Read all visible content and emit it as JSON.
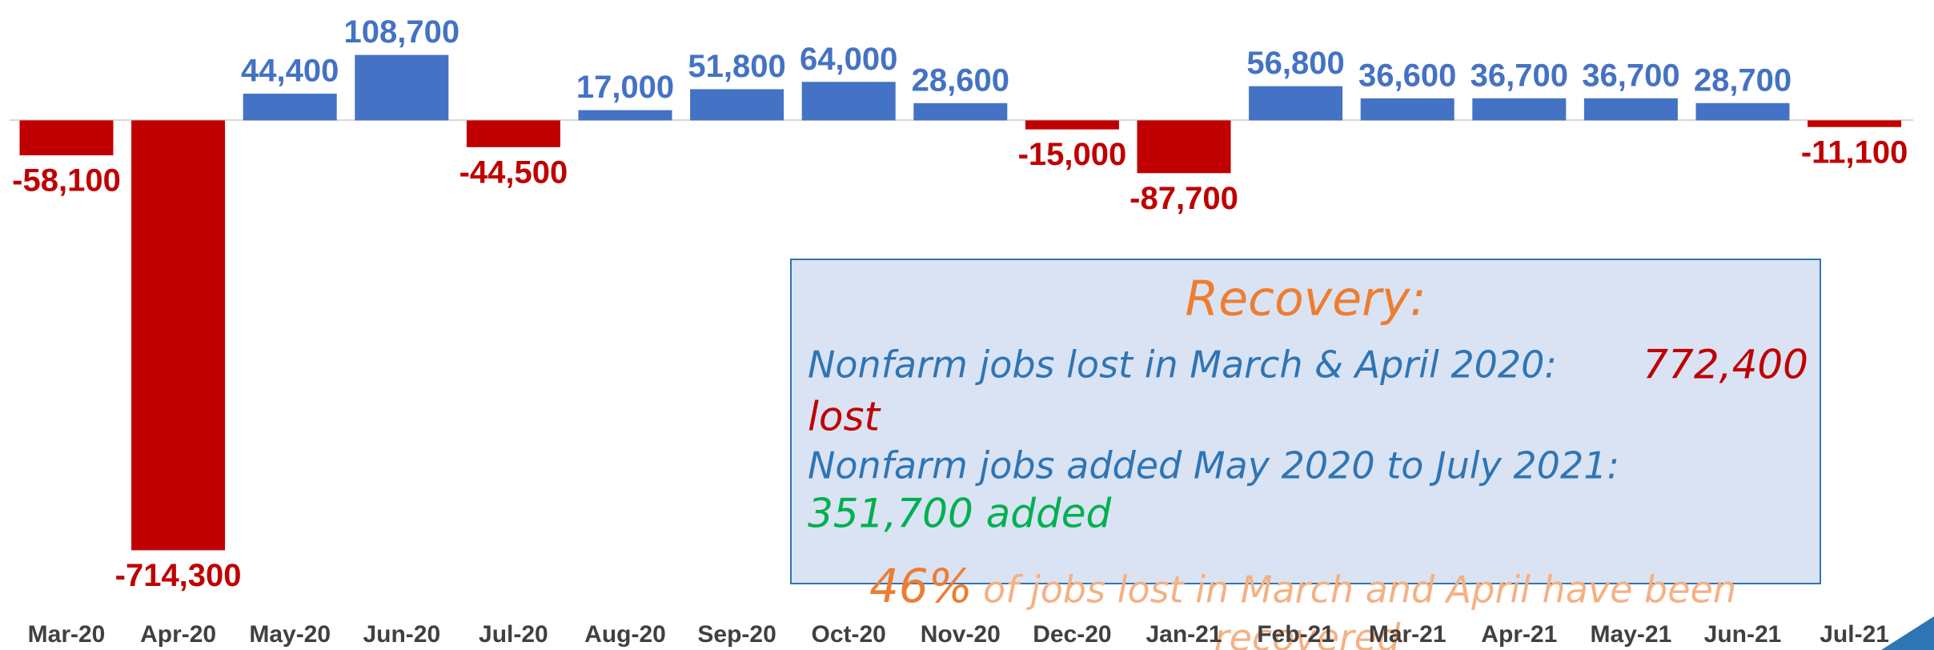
{
  "chart_data": {
    "type": "bar",
    "categories": [
      "Mar-20",
      "Apr-20",
      "May-20",
      "Jun-20",
      "Jul-20",
      "Aug-20",
      "Sep-20",
      "Oct-20",
      "Nov-20",
      "Dec-20",
      "Jan-21",
      "Feb-21",
      "Mar-21",
      "Apr-21",
      "May-21",
      "Jun-21",
      "Jul-21"
    ],
    "values": [
      -58100,
      -714300,
      44400,
      108700,
      -44500,
      17000,
      51800,
      64000,
      28600,
      -15000,
      -87700,
      56800,
      36600,
      36700,
      36700,
      28700,
      -11100
    ],
    "value_labels": [
      "-58,100",
      "-714,300",
      "44,400",
      "108,700",
      "-44,500",
      "17,000",
      "51,800",
      "64,000",
      "28,600",
      "-15,000",
      "-87,700",
      "56,800",
      "36,600",
      "36,700",
      "36,700",
      "28,700",
      "-11,100"
    ],
    "positive_color": "#4472c4",
    "negative_color": "#c00000",
    "ylim": [
      -880000,
      200000
    ],
    "annotation_box": {
      "title": "Recovery:",
      "lost_text": "Nonfarm jobs lost in March & April 2020:",
      "lost_value": "772,400",
      "lost_word": "lost",
      "added_text": "Nonfarm jobs added May 2020 to July 2021:",
      "added_value": "351,700 added"
    },
    "footer": {
      "percent": "46%",
      "text": "of jobs lost in March and April have been",
      "text_end": "recovered"
    }
  }
}
